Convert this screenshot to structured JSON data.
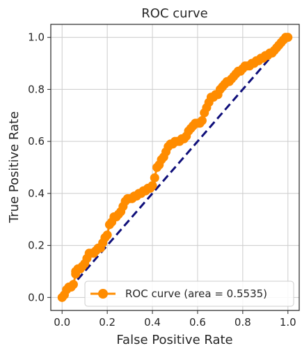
{
  "chart_data": {
    "type": "line",
    "title": "ROC curve",
    "xlabel": "False Positive Rate",
    "ylabel": "True Positive Rate",
    "xlim": [
      -0.05,
      1.05
    ],
    "ylim": [
      -0.05,
      1.05
    ],
    "xticks": [
      "0.0",
      "0.2",
      "0.4",
      "0.6",
      "0.8",
      "1.0"
    ],
    "yticks": [
      "0.0",
      "0.2",
      "0.4",
      "0.6",
      "0.8",
      "1.0"
    ],
    "grid": true,
    "legend": {
      "placement": "lower-right"
    },
    "series": [
      {
        "name": "ROC curve (area = 0.5535)",
        "color": "#ff8c00",
        "marker": "circle",
        "x": [
          0.0,
          0.01,
          0.02,
          0.03,
          0.04,
          0.05,
          0.06,
          0.06,
          0.07,
          0.08,
          0.09,
          0.1,
          0.11,
          0.12,
          0.13,
          0.14,
          0.15,
          0.16,
          0.17,
          0.18,
          0.19,
          0.2,
          0.21,
          0.22,
          0.23,
          0.24,
          0.25,
          0.26,
          0.27,
          0.28,
          0.29,
          0.3,
          0.31,
          0.32,
          0.33,
          0.34,
          0.35,
          0.36,
          0.37,
          0.38,
          0.39,
          0.4,
          0.41,
          0.42,
          0.43,
          0.44,
          0.45,
          0.46,
          0.47,
          0.48,
          0.49,
          0.5,
          0.51,
          0.52,
          0.53,
          0.54,
          0.55,
          0.56,
          0.57,
          0.58,
          0.59,
          0.6,
          0.61,
          0.62,
          0.63,
          0.64,
          0.65,
          0.66,
          0.67,
          0.68,
          0.69,
          0.7,
          0.71,
          0.72,
          0.73,
          0.74,
          0.75,
          0.76,
          0.77,
          0.78,
          0.79,
          0.8,
          0.81,
          0.82,
          0.83,
          0.84,
          0.85,
          0.86,
          0.87,
          0.88,
          0.89,
          0.9,
          0.91,
          0.92,
          0.93,
          0.94,
          0.95,
          0.96,
          0.97,
          0.98,
          0.99,
          1.0
        ],
        "y": [
          0.0,
          0.01,
          0.03,
          0.04,
          0.04,
          0.05,
          0.09,
          0.1,
          0.11,
          0.11,
          0.12,
          0.13,
          0.15,
          0.17,
          0.17,
          0.17,
          0.18,
          0.19,
          0.19,
          0.21,
          0.23,
          0.24,
          0.28,
          0.29,
          0.31,
          0.31,
          0.32,
          0.33,
          0.35,
          0.37,
          0.38,
          0.38,
          0.38,
          0.39,
          0.39,
          0.4,
          0.4,
          0.41,
          0.41,
          0.42,
          0.42,
          0.43,
          0.46,
          0.5,
          0.51,
          0.53,
          0.54,
          0.56,
          0.58,
          0.59,
          0.59,
          0.6,
          0.6,
          0.6,
          0.61,
          0.61,
          0.62,
          0.64,
          0.65,
          0.66,
          0.67,
          0.67,
          0.67,
          0.68,
          0.71,
          0.73,
          0.75,
          0.77,
          0.77,
          0.78,
          0.78,
          0.8,
          0.81,
          0.82,
          0.83,
          0.83,
          0.84,
          0.85,
          0.86,
          0.87,
          0.87,
          0.88,
          0.89,
          0.89,
          0.89,
          0.9,
          0.9,
          0.91,
          0.91,
          0.92,
          0.92,
          0.93,
          0.93,
          0.94,
          0.94,
          0.95,
          0.96,
          0.97,
          0.98,
          0.99,
          1.0,
          1.0
        ]
      },
      {
        "color": "#0f0f7a",
        "style": "dashed",
        "x": [
          0,
          1
        ],
        "y": [
          0,
          1
        ]
      }
    ]
  }
}
